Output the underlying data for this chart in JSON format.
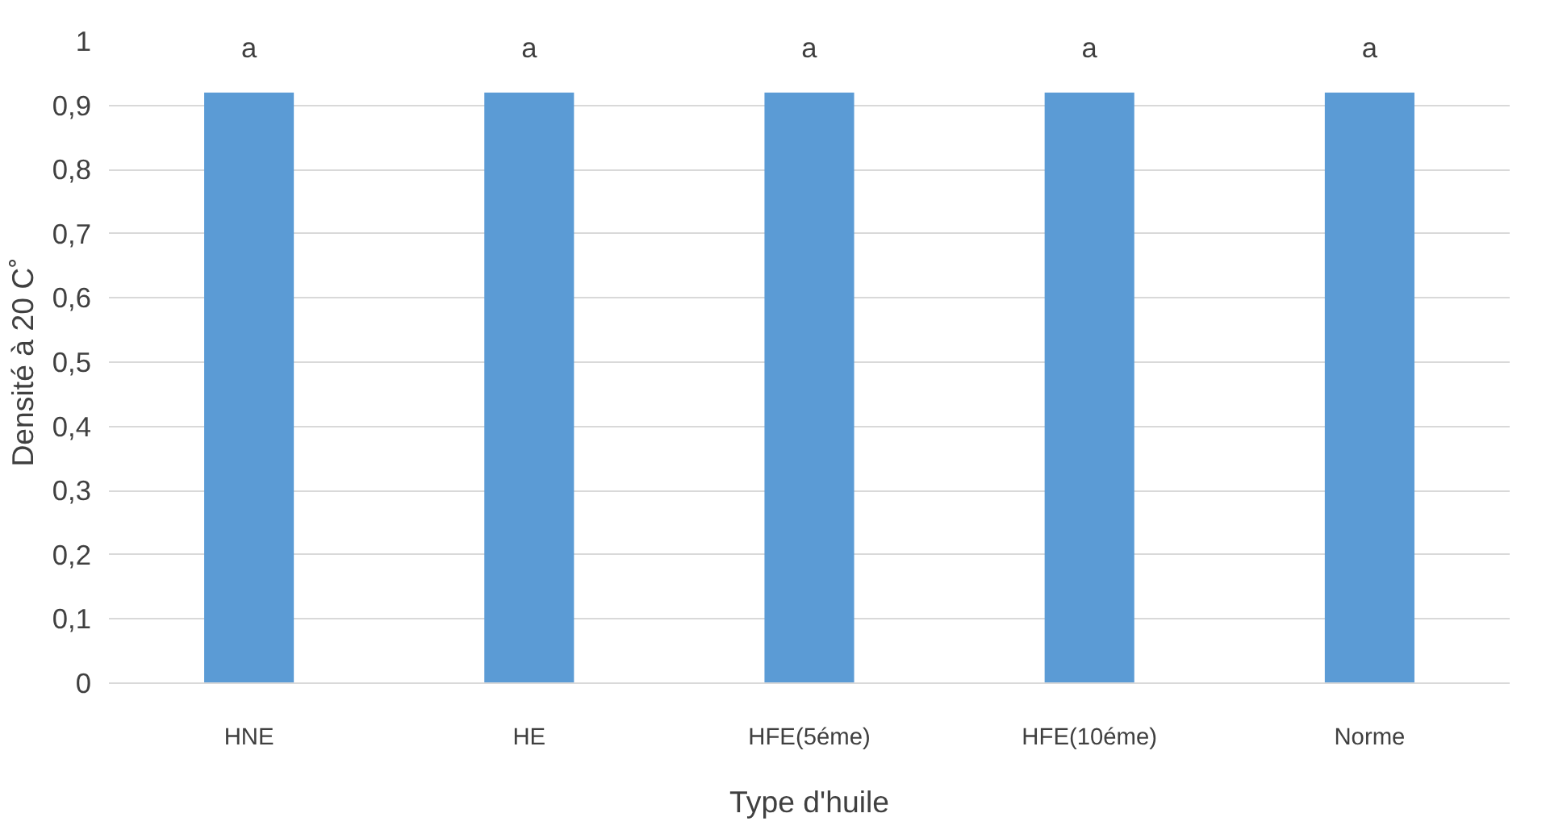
{
  "chart_data": {
    "type": "bar",
    "xlabel": "Type d'huile",
    "ylabel": "Densité à 20 C˚",
    "categories": [
      "HNE",
      "HE",
      "HFE(5éme)",
      "HFE(10éme)",
      "Norme"
    ],
    "values": [
      0.92,
      0.92,
      0.92,
      0.92,
      0.92
    ],
    "color": "#5b9bd5",
    "ylim": [
      0,
      1
    ],
    "yticks": [
      0,
      {
        "value": 0.1,
        "label": "0,1"
      },
      {
        "value": 0.2,
        "label": "0,2"
      },
      {
        "value": 0.3,
        "label": "0,3"
      },
      {
        "value": 0.4,
        "label": "0,4"
      },
      {
        "value": 0.5,
        "label": "0,5"
      },
      {
        "value": 0.6,
        "label": "0,6"
      },
      {
        "value": 0.7,
        "label": "0,7"
      },
      {
        "value": 0.8,
        "label": "0,8"
      },
      {
        "value": 0.9,
        "label": "0,9"
      },
      1
    ],
    "grid": "y",
    "annotations": [
      {
        "text": "a",
        "x": "HNE",
        "y": 0.92
      },
      {
        "text": "a",
        "x": "HE",
        "y": 0.92
      },
      {
        "text": "a",
        "x": "HFE(5éme)",
        "y": 0.92
      },
      {
        "text": "a",
        "x": "HFE(10éme)",
        "y": 0.92
      },
      {
        "text": "a",
        "x": "Norme",
        "y": 0.92
      }
    ]
  }
}
